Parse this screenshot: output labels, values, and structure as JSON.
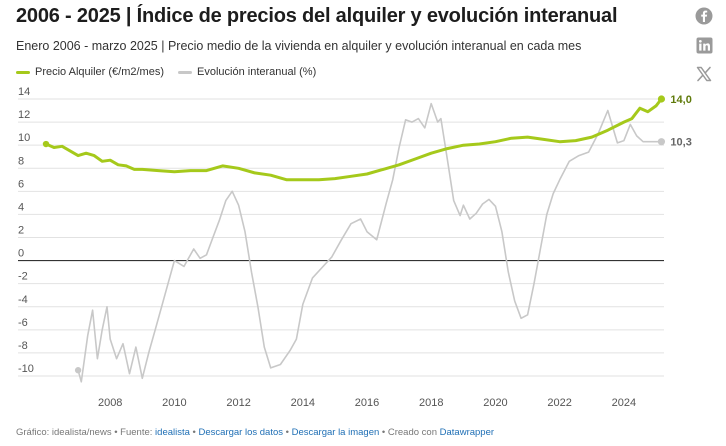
{
  "header": {
    "title": "2006 - 2025 | Índice de precios del alquiler y evolución interanual",
    "subtitle": "Enero 2006 - marzo 2025 | Precio medio de la vivienda en alquiler y evolución interanual en cada mes"
  },
  "share": {
    "facebook_icon": "facebook-icon",
    "linkedin_icon": "linkedin-icon",
    "x_icon": "x-icon"
  },
  "colors": {
    "price": "#a5c91b",
    "yoy": "#c8c8c8",
    "zero_line": "#333333",
    "grid": "#e2e2e2"
  },
  "chart_data": {
    "type": "line",
    "ylim": [
      -11,
      15
    ],
    "xlim": [
      2006.0,
      2025.25
    ],
    "y_ticks": [
      14,
      12,
      10,
      8,
      6,
      4,
      2,
      0,
      -2,
      -4,
      -6,
      -8,
      -10
    ],
    "x_ticks": [
      "2008",
      "2010",
      "2012",
      "2014",
      "2016",
      "2018",
      "2020",
      "2022",
      "2024"
    ],
    "grid": true,
    "legend_position": "top-left",
    "series": [
      {
        "name": "Precio Alquiler (€/m2/mes)",
        "end_label": "14,0",
        "x": [
          2006.0,
          2006.25,
          2006.5,
          2006.75,
          2007.0,
          2007.25,
          2007.5,
          2007.75,
          2008.0,
          2008.25,
          2008.5,
          2008.75,
          2009.0,
          2009.5,
          2010.0,
          2010.5,
          2011.0,
          2011.5,
          2012.0,
          2012.5,
          2013.0,
          2013.5,
          2014.0,
          2014.5,
          2015.0,
          2015.5,
          2016.0,
          2016.5,
          2017.0,
          2017.5,
          2018.0,
          2018.5,
          2019.0,
          2019.5,
          2020.0,
          2020.5,
          2021.0,
          2021.5,
          2022.0,
          2022.5,
          2023.0,
          2023.5,
          2024.0,
          2024.25,
          2024.5,
          2024.75,
          2025.0,
          2025.17
        ],
        "values": [
          10.1,
          9.8,
          9.9,
          9.5,
          9.1,
          9.3,
          9.1,
          8.6,
          8.7,
          8.3,
          8.2,
          7.9,
          7.9,
          7.8,
          7.7,
          7.8,
          7.8,
          8.2,
          8.0,
          7.6,
          7.4,
          7.0,
          7.0,
          7.0,
          7.1,
          7.3,
          7.5,
          7.9,
          8.3,
          8.8,
          9.3,
          9.7,
          10.0,
          10.1,
          10.3,
          10.6,
          10.7,
          10.5,
          10.3,
          10.4,
          10.7,
          11.3,
          12.0,
          12.3,
          13.2,
          12.9,
          13.4,
          14.0
        ]
      },
      {
        "name": "Evolución interanual (%)",
        "end_label": "10,3",
        "x": [
          2007.0,
          2007.1,
          2007.3,
          2007.45,
          2007.6,
          2007.75,
          2007.9,
          2008.0,
          2008.2,
          2008.4,
          2008.6,
          2008.8,
          2009.0,
          2009.2,
          2009.4,
          2009.6,
          2009.8,
          2010.0,
          2010.3,
          2010.6,
          2010.8,
          2011.0,
          2011.2,
          2011.4,
          2011.6,
          2011.8,
          2012.0,
          2012.2,
          2012.4,
          2012.6,
          2012.8,
          2013.0,
          2013.3,
          2013.6,
          2013.8,
          2014.0,
          2014.3,
          2014.6,
          2014.9,
          2015.2,
          2015.5,
          2015.8,
          2016.0,
          2016.3,
          2016.6,
          2016.8,
          2017.0,
          2017.2,
          2017.4,
          2017.6,
          2017.8,
          2018.0,
          2018.2,
          2018.3,
          2018.5,
          2018.7,
          2018.9,
          2019.0,
          2019.2,
          2019.4,
          2019.6,
          2019.8,
          2020.0,
          2020.2,
          2020.4,
          2020.6,
          2020.8,
          2021.0,
          2021.2,
          2021.4,
          2021.6,
          2021.8,
          2022.0,
          2022.3,
          2022.6,
          2022.9,
          2023.2,
          2023.5,
          2023.8,
          2024.0,
          2024.2,
          2024.4,
          2024.6,
          2024.8,
          2025.0,
          2025.17
        ],
        "values": [
          -9.5,
          -10.5,
          -6.5,
          -4.3,
          -8.5,
          -6.0,
          -4.0,
          -6.8,
          -8.5,
          -7.2,
          -9.8,
          -7.5,
          -10.2,
          -8.0,
          -6.0,
          -4.0,
          -2.0,
          0.0,
          -0.5,
          1.0,
          0.2,
          0.5,
          2.0,
          3.5,
          5.2,
          6.0,
          4.8,
          2.5,
          -1.0,
          -4.0,
          -7.5,
          -9.3,
          -9.0,
          -7.8,
          -6.8,
          -3.8,
          -1.5,
          -0.6,
          0.3,
          1.8,
          3.2,
          3.6,
          2.5,
          1.8,
          5.0,
          7.0,
          9.8,
          12.2,
          12.0,
          12.3,
          11.5,
          13.6,
          12.0,
          12.3,
          8.8,
          5.2,
          3.9,
          4.8,
          3.6,
          4.1,
          4.9,
          5.3,
          4.7,
          2.5,
          -1.0,
          -3.5,
          -5.0,
          -4.7,
          -2.0,
          1.0,
          4.0,
          5.8,
          7.0,
          8.6,
          9.1,
          9.4,
          11.0,
          13.0,
          10.2,
          10.4,
          11.8,
          10.8,
          10.3,
          10.3,
          10.3,
          10.3
        ]
      }
    ]
  },
  "footer": {
    "source_prefix": "Gráfico: idealista/news • Fuente:",
    "source_link": "idealista",
    "sep1": "•",
    "download_data": "Descargar los datos",
    "sep2": "•",
    "download_image": "Descargar la imagen",
    "sep3": "• Creado con",
    "tool_link": "Datawrapper"
  }
}
